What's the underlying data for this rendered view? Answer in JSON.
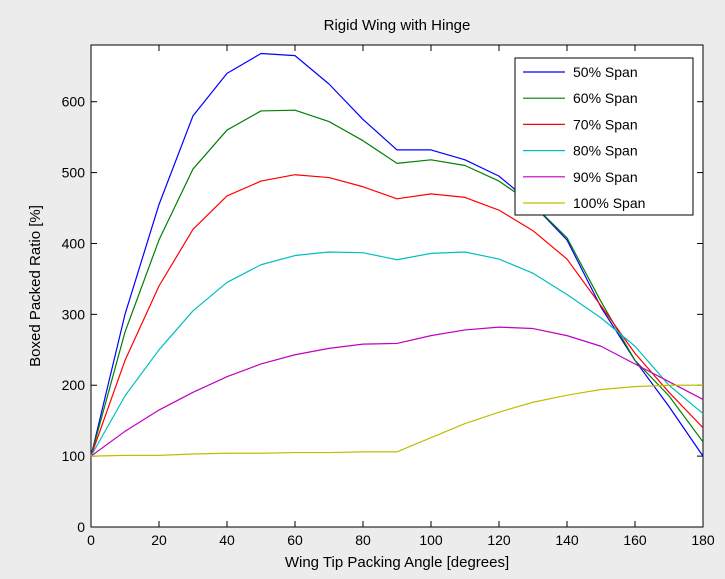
{
  "colors": {
    "figure_bg": "#ececec",
    "axes_bg": "#ffffff",
    "axes_edge": "#000000"
  },
  "chart_data": {
    "type": "line",
    "title": "Rigid Wing with Hinge",
    "xlabel": "Wing Tip Packing Angle [degrees]",
    "ylabel": "Boxed Packed Ratio [%]",
    "xlim": [
      0,
      180
    ],
    "ylim": [
      0,
      680
    ],
    "xticks": [
      0,
      20,
      40,
      60,
      80,
      100,
      120,
      140,
      160,
      180
    ],
    "yticks": [
      0,
      100,
      200,
      300,
      400,
      500,
      600
    ],
    "grid": false,
    "legend_position": "top-right",
    "x": [
      0,
      10,
      20,
      30,
      40,
      50,
      60,
      70,
      80,
      90,
      100,
      110,
      120,
      130,
      140,
      150,
      160,
      170,
      180
    ],
    "series": [
      {
        "name": "50% Span",
        "color": "#0000ff",
        "values": [
          100,
          300,
          455,
          580,
          640,
          668,
          665,
          625,
          575,
          532,
          532,
          518,
          495,
          455,
          405,
          310,
          235,
          170,
          100
        ]
      },
      {
        "name": "60% Span",
        "color": "#008000",
        "values": [
          100,
          275,
          405,
          505,
          560,
          587,
          588,
          572,
          545,
          513,
          518,
          510,
          488,
          455,
          408,
          318,
          235,
          185,
          120
        ]
      },
      {
        "name": "70% Span",
        "color": "#ff0000",
        "values": [
          100,
          235,
          340,
          420,
          467,
          488,
          497,
          493,
          480,
          463,
          470,
          465,
          447,
          418,
          378,
          312,
          245,
          190,
          140
        ]
      },
      {
        "name": "80% Span",
        "color": "#00bfbf",
        "values": [
          100,
          185,
          250,
          305,
          345,
          370,
          383,
          388,
          387,
          377,
          386,
          388,
          378,
          358,
          328,
          295,
          255,
          200,
          160
        ]
      },
      {
        "name": "90% Span",
        "color": "#bf00bf",
        "values": [
          100,
          135,
          165,
          190,
          212,
          230,
          243,
          252,
          258,
          259,
          270,
          278,
          282,
          280,
          270,
          255,
          230,
          205,
          180
        ]
      },
      {
        "name": "100% Span",
        "color": "#bfbf00",
        "values": [
          100,
          101,
          101,
          103,
          104,
          104,
          105,
          105,
          106,
          106,
          126,
          146,
          162,
          176,
          186,
          194,
          198,
          200,
          200
        ]
      }
    ]
  }
}
